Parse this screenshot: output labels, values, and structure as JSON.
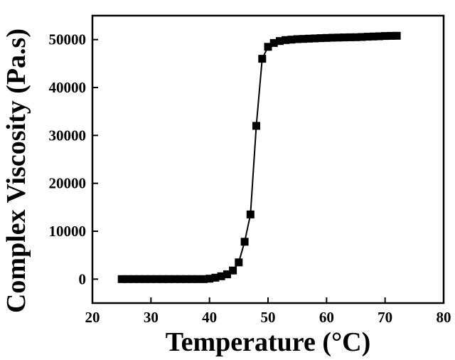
{
  "chart_data": {
    "type": "scatter",
    "xlabel": "Temperature (°C)",
    "ylabel": "Complex Viscosity (Pa.s)",
    "xlim": [
      20,
      80
    ],
    "ylim": [
      -5000,
      55000
    ],
    "xticks": [
      20,
      30,
      40,
      50,
      60,
      70,
      80
    ],
    "yticks": [
      0,
      10000,
      20000,
      30000,
      40000,
      50000
    ],
    "grid": false,
    "legend": "none",
    "marker": "square",
    "line_connected": true,
    "color": "#000000",
    "series": [
      {
        "x": [
          25,
          26,
          27,
          28,
          29,
          30,
          31,
          32,
          33,
          34,
          35,
          36,
          37,
          38,
          39,
          40,
          41,
          42,
          43,
          44,
          45,
          46,
          47,
          48,
          49,
          50,
          51,
          52,
          53,
          54,
          55,
          56,
          57,
          58,
          59,
          60,
          61,
          62,
          63,
          64,
          65,
          66,
          67,
          68,
          69,
          70,
          71,
          72
        ],
        "y": [
          0,
          0,
          0,
          0,
          0,
          0,
          0,
          0,
          0,
          0,
          0,
          0,
          0,
          0,
          0,
          100,
          300,
          600,
          1000,
          1800,
          3500,
          7800,
          13500,
          32000,
          46000,
          48500,
          49300,
          49700,
          49900,
          50000,
          50100,
          50150,
          50200,
          50250,
          50300,
          50350,
          50400,
          50420,
          50450,
          50480,
          50500,
          50550,
          50600,
          50650,
          50700,
          50750,
          50780,
          50800
        ]
      }
    ]
  }
}
